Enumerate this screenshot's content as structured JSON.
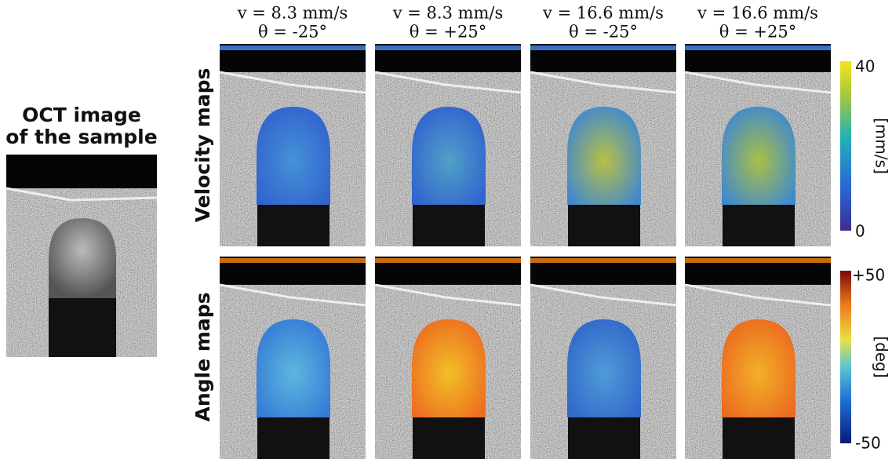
{
  "oct": {
    "title_lines": [
      "OCT image",
      "of the sample"
    ]
  },
  "columns": [
    {
      "speed": "v = 8.3 mm/s",
      "angle": "θ = -25°"
    },
    {
      "speed": "v = 8.3 mm/s",
      "angle": "θ = +25°"
    },
    {
      "speed": "v = 16.6 mm/s",
      "angle": "θ = -25°"
    },
    {
      "speed": "v = 16.6 mm/s",
      "angle": "θ = +25°"
    }
  ],
  "rows": [
    {
      "label": "Velocity maps",
      "colorbar": {
        "max": "40",
        "min": "0",
        "unit": "[mm/s]"
      }
    },
    {
      "label": "Angle maps",
      "colorbar": {
        "max": "+50",
        "min": "-50",
        "unit": "[deg]"
      }
    }
  ]
}
